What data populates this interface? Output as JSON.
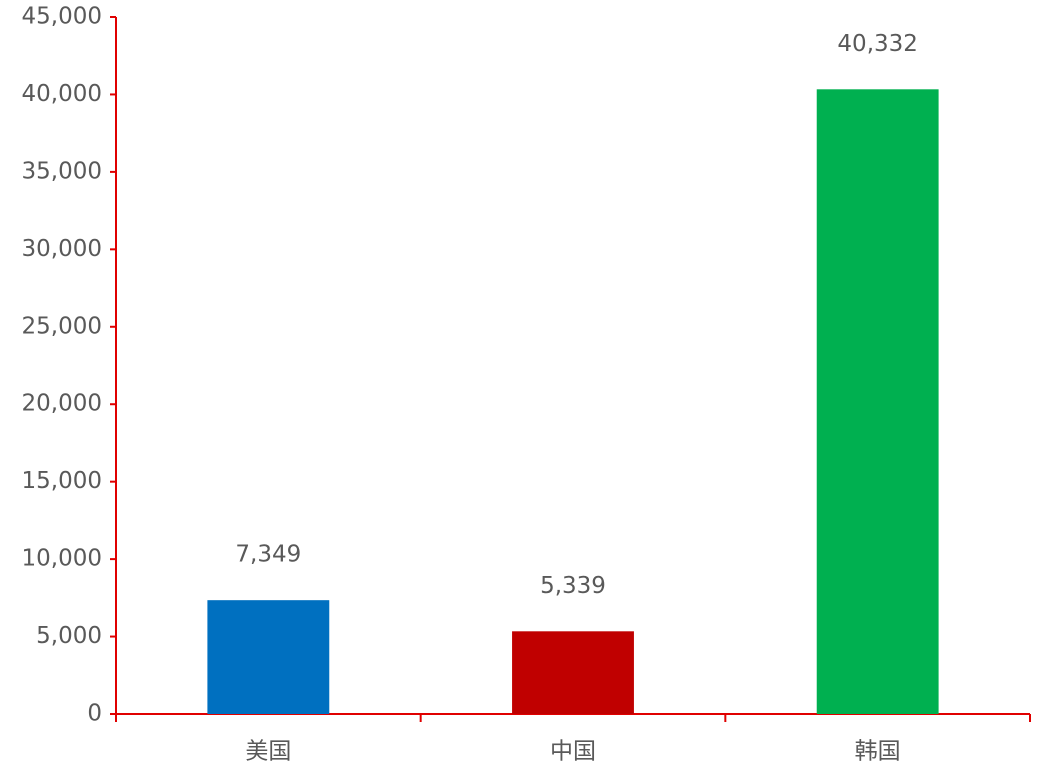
{
  "chart_data": {
    "type": "bar",
    "categories": [
      "美国",
      "中国",
      "韩国"
    ],
    "values": [
      7349,
      5339,
      40332
    ],
    "value_labels": [
      "7,349",
      "5,339",
      "40,332"
    ],
    "colors": [
      "#0070c0",
      "#c00000",
      "#00b050"
    ],
    "ylim": [
      0,
      45000
    ],
    "yticks": [
      0,
      {
        "value": 5000,
        "label": "5,000"
      },
      {
        "value": 10000,
        "label": "10,000"
      },
      {
        "value": 15000,
        "label": "15,000"
      },
      {
        "value": 20000,
        "label": "20,000"
      },
      {
        "value": 25000,
        "label": "25,000"
      },
      {
        "value": 30000,
        "label": "30,000"
      },
      {
        "value": 35000,
        "label": "35,000"
      },
      {
        "value": 40000,
        "label": "40,000"
      },
      {
        "value": 45000,
        "label": "45,000"
      }
    ],
    "axis_color": "#e00000",
    "grid": false
  }
}
